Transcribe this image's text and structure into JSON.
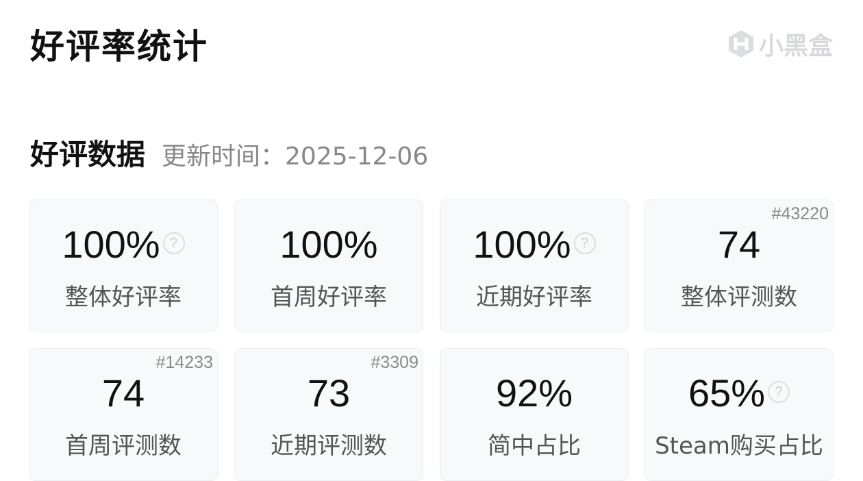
{
  "header": {
    "title": "好评率统计",
    "logo_text": "小黑盒"
  },
  "section": {
    "heading": "好评数据",
    "updated": "更新时间：2025-12-06"
  },
  "cards": [
    {
      "value": "100%",
      "label": "整体好评率",
      "help": true,
      "rank": ""
    },
    {
      "value": "100%",
      "label": "首周好评率",
      "help": false,
      "rank": ""
    },
    {
      "value": "100%",
      "label": "近期好评率",
      "help": true,
      "rank": ""
    },
    {
      "value": "74",
      "label": "整体评测数",
      "help": false,
      "rank": "#43220"
    },
    {
      "value": "74",
      "label": "首周评测数",
      "help": false,
      "rank": "#14233"
    },
    {
      "value": "73",
      "label": "近期评测数",
      "help": false,
      "rank": "#3309"
    },
    {
      "value": "92%",
      "label": "简中占比",
      "help": false,
      "rank": ""
    },
    {
      "value": "65%",
      "label": "Steam购买占比",
      "help": true,
      "rank": ""
    }
  ]
}
